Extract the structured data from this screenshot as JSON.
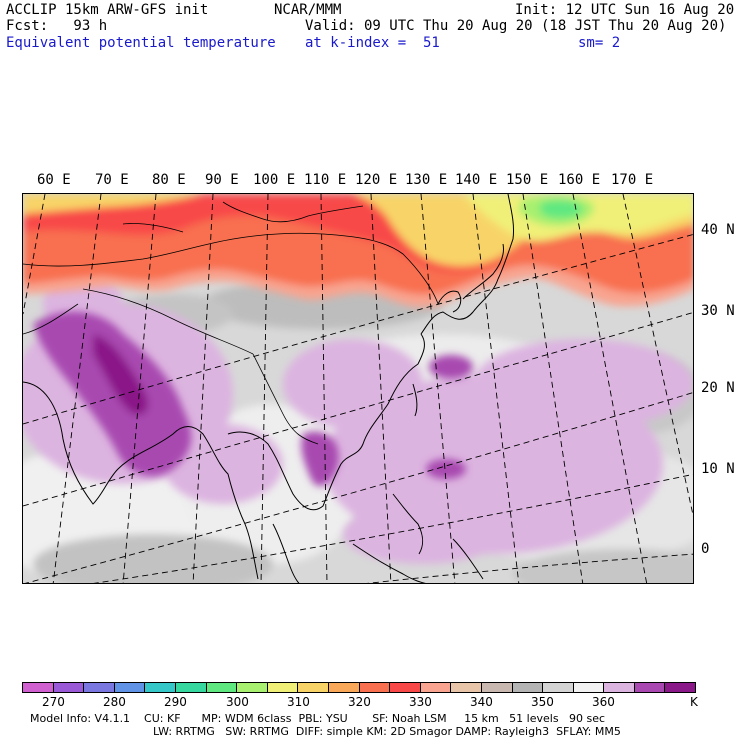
{
  "header": {
    "model": "ACCLIP 15km ARW-GFS init",
    "forecast": "Fcst:   93 h",
    "field": "Equivalent potential temperature",
    "center": "NCAR/MMM",
    "init": "Init: 12 UTC Sun 16 Aug 20",
    "valid": "Valid: 09 UTC Thu 20 Aug 20 (18 JST Thu 20 Aug 20)",
    "level": "at k-index =  51",
    "smoothing": "sm= 2"
  },
  "map": {
    "longitude_labels": [
      "60 E",
      "70 E",
      "80 E",
      "90 E",
      "100 E",
      "110 E",
      "120 E",
      "130 E",
      "140 E",
      "150 E",
      "160 E",
      "170 E"
    ],
    "latitude_labels": [
      "40 N",
      "30 N",
      "20 N",
      "10 N",
      "0"
    ]
  },
  "legend": {
    "unit": "K",
    "tick_labels": [
      "270",
      "280",
      "290",
      "300",
      "310",
      "320",
      "330",
      "340",
      "350",
      "360"
    ],
    "colors": [
      "#d060d0",
      "#9a5ad8",
      "#7a78e0",
      "#6092e6",
      "#36c8c8",
      "#36d8a0",
      "#60e880",
      "#a8f070",
      "#f0f078",
      "#f8d468",
      "#f8a858",
      "#f87050",
      "#f84848",
      "#f8a490",
      "#e8c4a8",
      "#c8b8b0",
      "#b4b4b4",
      "#d4d4d4",
      "#f2f2f2",
      "#dcb4e0",
      "#a848b0",
      "#8a1888"
    ]
  },
  "footer": {
    "line1": "Model Info: V4.1.1    CU: KF      MP: WDM 6class  PBL: YSU       SF: Noah LSM     15 km   51 levels   90 sec",
    "line2": "LW: RRTMG   SW: RRTMG  DIFF: simple KM: 2D Smagor DAMP: Rayleigh3  SFLAY: MM5"
  }
}
